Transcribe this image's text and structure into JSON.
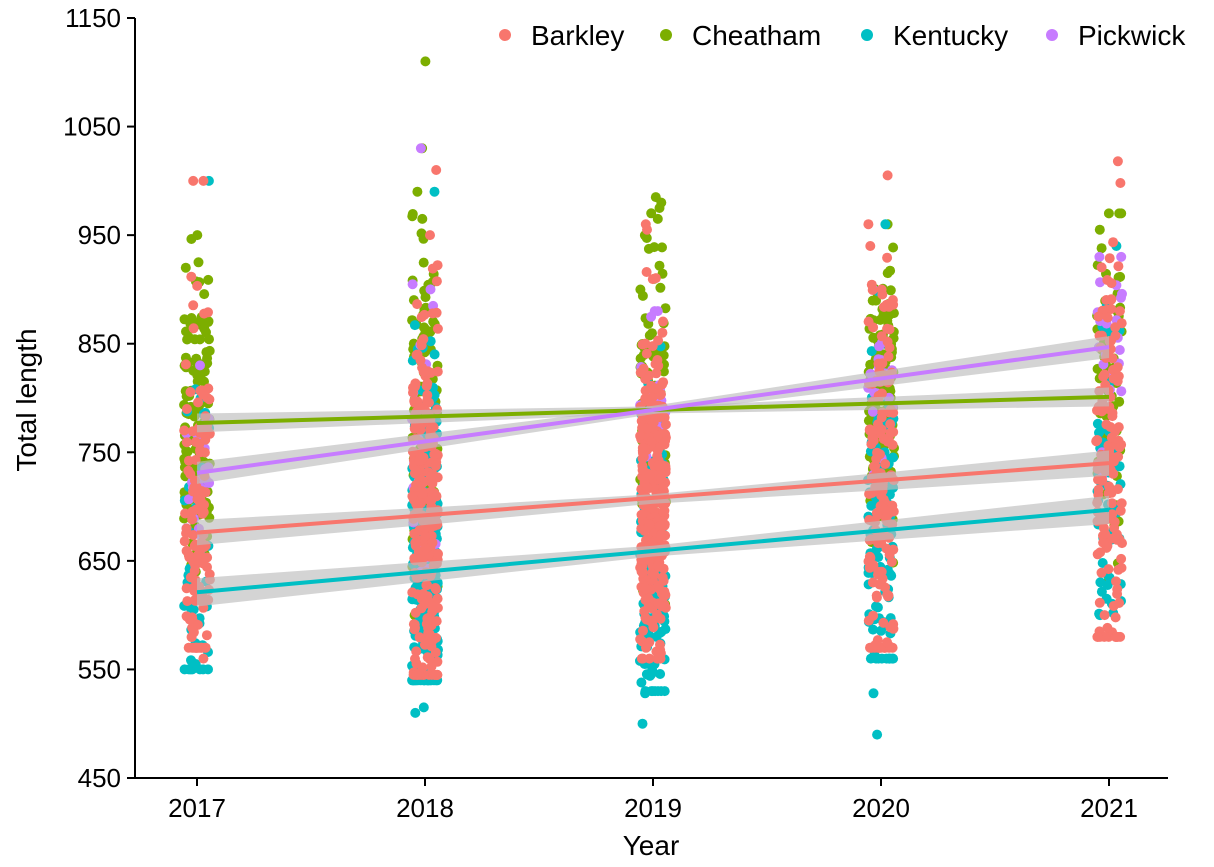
{
  "chart_data": {
    "type": "scatter",
    "xlabel": "Year",
    "ylabel": "Total length",
    "categories": [
      "2017",
      "2018",
      "2019",
      "2020",
      "2021"
    ],
    "ylim": [
      450,
      1150
    ],
    "yticks": [
      450,
      550,
      650,
      750,
      850,
      950,
      1050,
      1150
    ],
    "legend_position": "top-right",
    "grid": false,
    "series": [
      {
        "name": "Barkley",
        "color": "#F8766D",
        "range": [
          [
            570,
            1000
          ],
          [
            545,
            1010
          ],
          [
            560,
            960
          ],
          [
            570,
            1005
          ],
          [
            580,
            1018
          ]
        ],
        "extremes": [
          [
            1000,
            560,
            1000
          ],
          [
            1010,
            950,
            545
          ],
          [
            960,
            955,
            565
          ],
          [
            1005,
            575,
            940
          ],
          [
            1018,
            998,
            580,
            600
          ]
        ],
        "fit": [
          676,
          691,
          707,
          723,
          740
        ]
      },
      {
        "name": "Cheatham",
        "color": "#7CAE00",
        "range": [
          [
            640,
            950
          ],
          [
            600,
            1030
          ],
          [
            610,
            985
          ],
          [
            640,
            960
          ],
          [
            630,
            970
          ]
        ],
        "extremes": [
          [
            950,
            925,
            920
          ],
          [
            1110,
            1030,
            990,
            965
          ],
          [
            985,
            980,
            975,
            965
          ],
          [
            960,
            915
          ],
          [
            970,
            955,
            632
          ]
        ],
        "fit": [
          777,
          783,
          789,
          795,
          801
        ]
      },
      {
        "name": "Kentucky",
        "color": "#00BFC4",
        "range": [
          [
            550,
            1000
          ],
          [
            540,
            990
          ],
          [
            530,
            920
          ],
          [
            560,
            960
          ],
          [
            600,
            940
          ]
        ],
        "extremes": [
          [
            1000,
            550,
            555
          ],
          [
            990,
            540,
            515,
            510
          ],
          [
            500,
            528,
            545
          ],
          [
            490,
            528,
            560,
            960
          ],
          [
            600,
            602,
            940
          ]
        ],
        "fit": [
          621,
          640,
          659,
          678,
          697
        ]
      },
      {
        "name": "Pickwick",
        "color": "#C77CFF",
        "range": [
          [
            650,
            830
          ],
          [
            640,
            1030
          ],
          [
            650,
            880
          ],
          [
            700,
            900
          ],
          [
            680,
            930
          ]
        ],
        "extremes": [
          [
            830,
            680
          ],
          [
            1030,
            900
          ],
          [
            880
          ],
          [
            900
          ],
          [
            930
          ]
        ],
        "fit": [
          731,
          760,
          789,
          818,
          847
        ]
      }
    ]
  }
}
